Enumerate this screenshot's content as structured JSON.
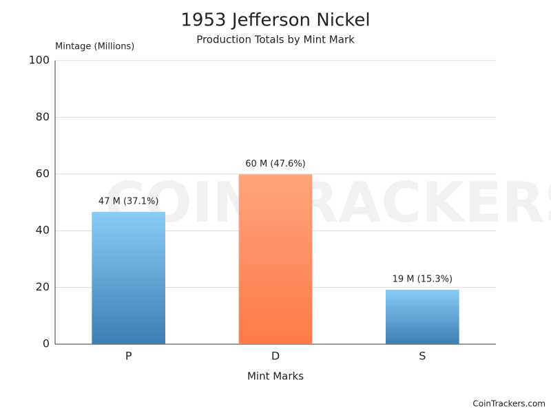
{
  "chart_data": {
    "type": "bar",
    "title": "1953 Jefferson Nickel",
    "subtitle": "Production Totals by Mint Mark",
    "y_label": "Mintage (Millions)",
    "x_label": "Mint Marks",
    "categories": [
      "P",
      "D",
      "S"
    ],
    "values": [
      46.64,
      59.88,
      19.21
    ],
    "value_labels": [
      "47 M (37.1%)",
      "60 M (47.6%)",
      "19 M (15.3%)"
    ],
    "bar_gradients": [
      {
        "top": "#88cdf6",
        "bottom": "#3e7db3"
      },
      {
        "top": "#ffa47c",
        "bottom": "#ff7a48"
      },
      {
        "top": "#88cdf6",
        "bottom": "#3e7db3"
      }
    ],
    "ylim": [
      0,
      100
    ],
    "yticks": [
      0,
      20,
      40,
      60,
      80,
      100
    ],
    "grid": true,
    "watermark": "COINTRACKERS",
    "footer": "CoinTrackers.com"
  }
}
